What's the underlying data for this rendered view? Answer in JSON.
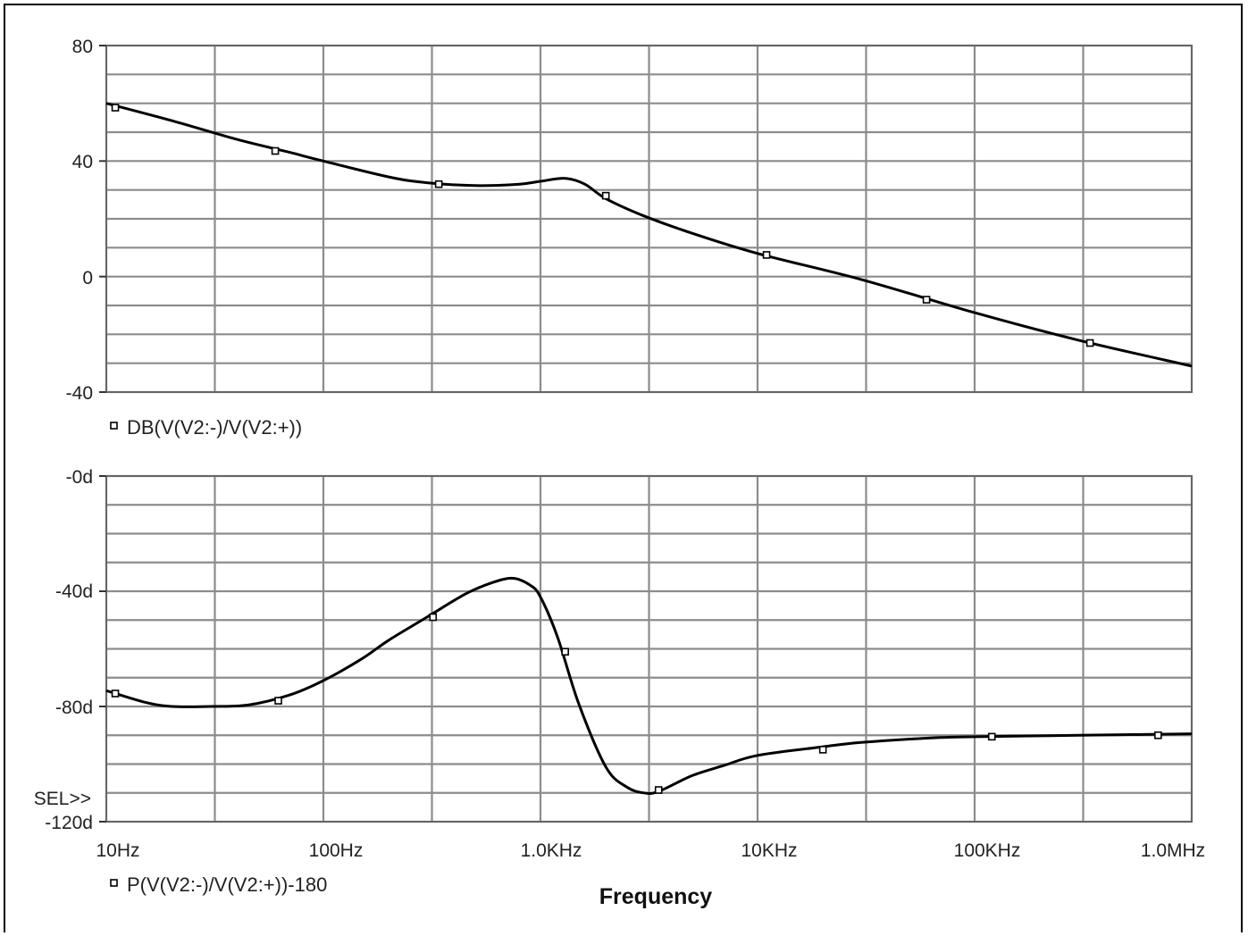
{
  "chart_data": [
    {
      "type": "line",
      "x_scale": "log",
      "xlim": [
        10,
        1000000
      ],
      "ylim": [
        -40,
        80
      ],
      "y_ticks": [
        "80",
        "40",
        "0",
        "-40"
      ],
      "y_tick_values": [
        80,
        40,
        0,
        -40
      ],
      "grid": true,
      "series": [
        {
          "name": "DB(V(V2:-)/V(V2:+))",
          "marker": "square",
          "x": [
            10,
            20,
            40,
            70,
            100,
            200,
            300,
            500,
            800,
            1000,
            1300,
            1600,
            2000,
            3000,
            5000,
            10000,
            30000,
            100000,
            300000,
            1000000
          ],
          "y": [
            60,
            54,
            47.5,
            43,
            40,
            34.5,
            32.5,
            31.5,
            32,
            33,
            34,
            32,
            27,
            21,
            15,
            8,
            -1,
            -12.5,
            -22,
            -31
          ],
          "marker_x": [
            11,
            60,
            340,
            2000,
            11000,
            60000,
            340000
          ],
          "marker_y": [
            58.5,
            43.5,
            32,
            28,
            7.5,
            -8,
            -23
          ]
        }
      ]
    },
    {
      "type": "line",
      "x_scale": "log",
      "xlim": [
        10,
        1000000
      ],
      "ylim": [
        -120,
        0
      ],
      "y_ticks": [
        "-0d",
        "-40d",
        "-80d",
        "-120d"
      ],
      "y_tick_values": [
        0,
        -40,
        -80,
        -120
      ],
      "x_ticks": [
        "10Hz",
        "100Hz",
        "1.0KHz",
        "10KHz",
        "100KHz",
        "1.0MHz"
      ],
      "x_tick_values": [
        10,
        100,
        1000,
        10000,
        100000,
        1000000
      ],
      "xlabel": "Frequency",
      "grid": true,
      "series": [
        {
          "name": "P(V(V2:-)/V(V2:+))-180",
          "marker": "square",
          "x": [
            10,
            15,
            20,
            30,
            45,
            70,
            100,
            150,
            200,
            300,
            450,
            600,
            750,
            900,
            1000,
            1200,
            1500,
            2000,
            2500,
            3000,
            3500,
            5000,
            7000,
            10000,
            20000,
            30000,
            60000,
            100000,
            300000,
            1000000
          ],
          "y": [
            -74.5,
            -78.5,
            -80,
            -80,
            -79.5,
            -76,
            -71,
            -63.5,
            -57,
            -49,
            -41,
            -37,
            -35.5,
            -38,
            -42,
            -56,
            -79,
            -101,
            -108,
            -110,
            -109.5,
            -104,
            -100.5,
            -97,
            -94,
            -92.5,
            -91,
            -90.5,
            -90,
            -89.5
          ],
          "marker_x": [
            11,
            62,
            320,
            1300,
            3500,
            20000,
            120000,
            700000
          ],
          "marker_y": [
            -75.5,
            -78,
            -49,
            -61,
            -109,
            -95,
            -90.5,
            -90
          ]
        }
      ]
    }
  ],
  "sel_marker": "SEL>>"
}
